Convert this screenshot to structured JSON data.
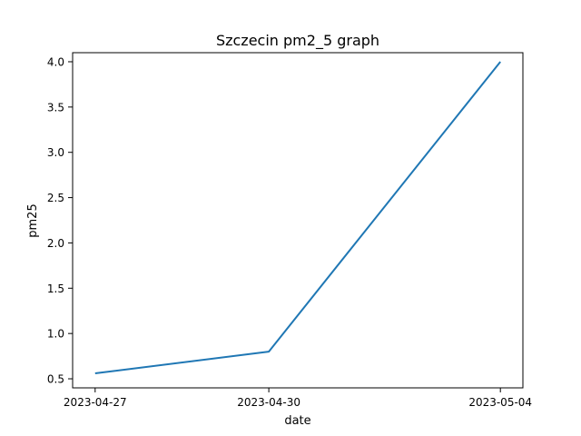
{
  "chart_data": {
    "type": "line",
    "title": "Szczecin pm2_5 graph",
    "xlabel": "date",
    "ylabel": "pm25",
    "x": [
      "2023-04-27",
      "2023-04-30",
      "2023-05-04"
    ],
    "series": [
      {
        "values": [
          0.56,
          0.8,
          4.0
        ]
      }
    ],
    "x_ticks": [
      "2023-04-27",
      "2023-04-30",
      "2023-05-04"
    ],
    "y_ticks": [
      0.5,
      1.0,
      1.5,
      2.0,
      2.5,
      3.0,
      3.5,
      4.0
    ],
    "y_tick_labels": [
      "0.5",
      "1.0",
      "1.5",
      "2.0",
      "2.5",
      "3.0",
      "3.5",
      "4.0"
    ],
    "ylim": [
      0.4,
      4.1
    ],
    "grid": false,
    "line_color": "#1f77b4"
  }
}
